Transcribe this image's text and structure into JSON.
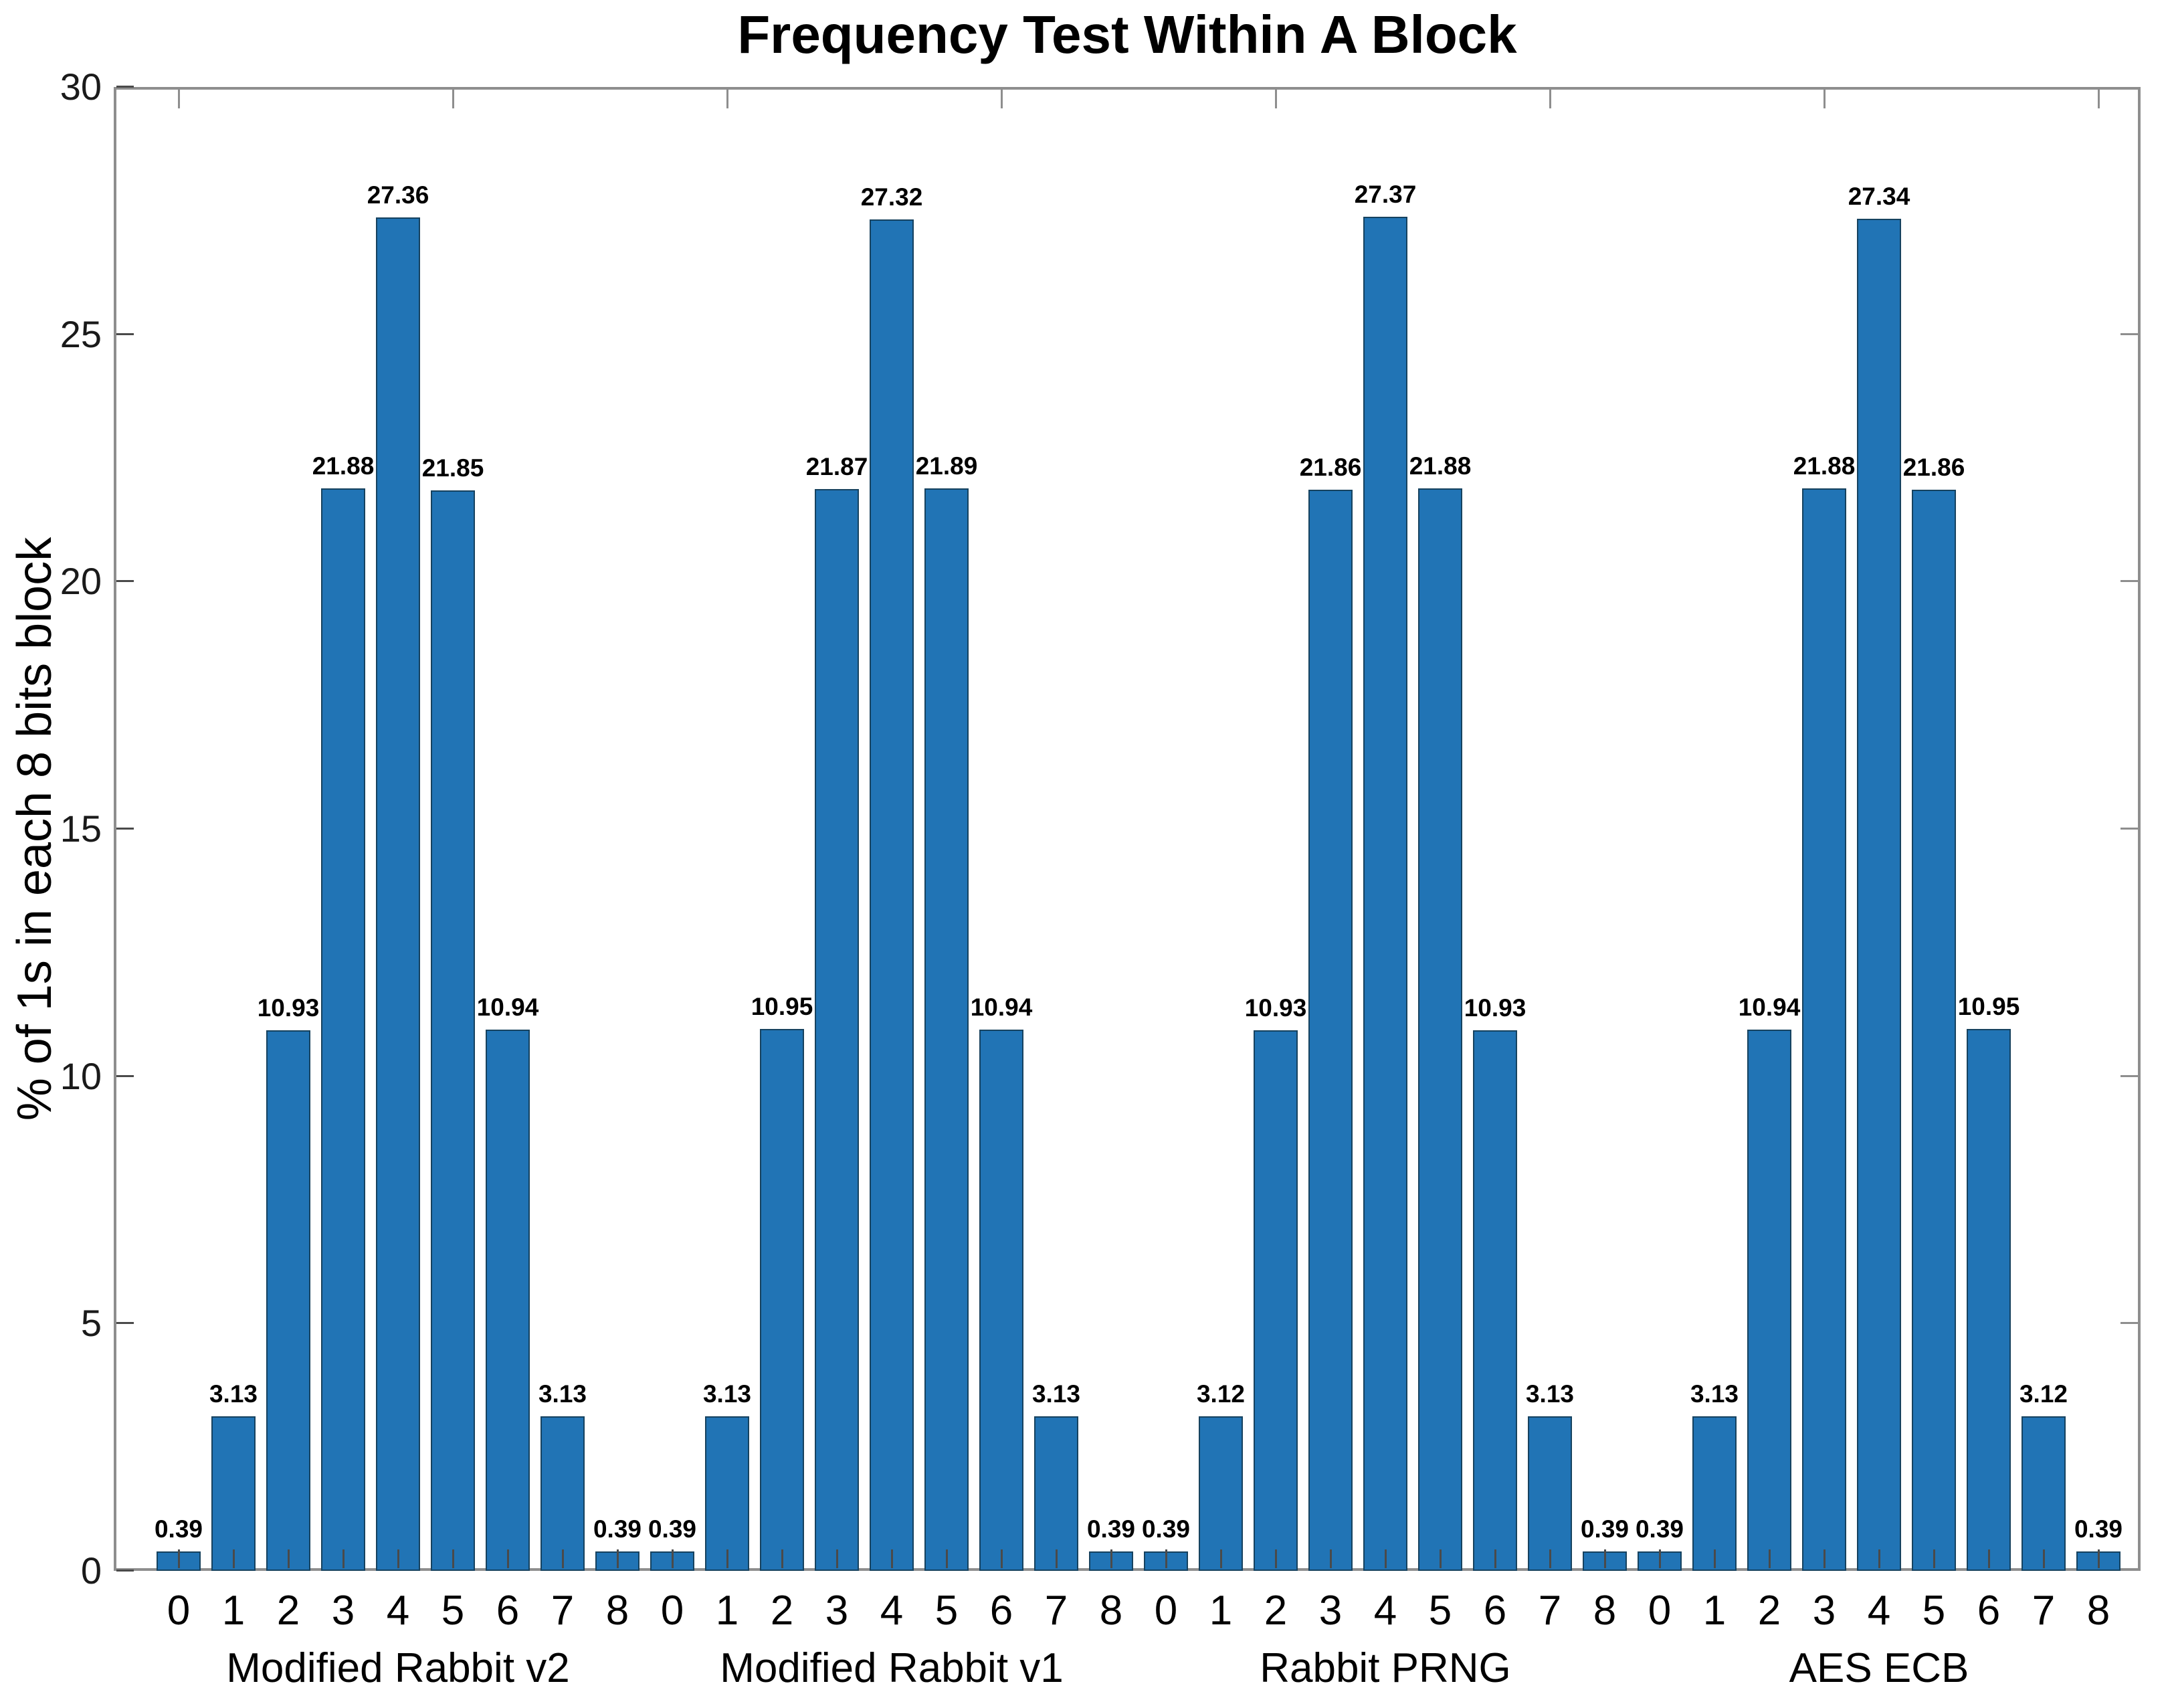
{
  "chart_data": {
    "type": "bar",
    "title": "Frequency Test Within A Block",
    "ylabel": "% of 1s in each 8 bits block",
    "xlabel": "",
    "ylim": [
      0,
      30
    ],
    "yticks": [
      "0",
      "5",
      "10",
      "15",
      "20",
      "25",
      "30"
    ],
    "grid": false,
    "legend_position": "none",
    "value_labels_shown": true,
    "categories": [
      "0",
      "1",
      "2",
      "3",
      "4",
      "5",
      "6",
      "7",
      "8"
    ],
    "series": [
      {
        "name": "Modified Rabbit v2",
        "values": [
          0.39,
          3.13,
          10.93,
          21.88,
          27.36,
          21.85,
          10.94,
          3.13,
          0.39
        ]
      },
      {
        "name": "Modified Rabbit v1",
        "values": [
          0.39,
          3.13,
          10.95,
          21.87,
          27.32,
          21.89,
          10.94,
          3.13,
          0.39
        ]
      },
      {
        "name": "Rabbit PRNG",
        "values": [
          0.39,
          3.12,
          10.93,
          21.86,
          27.37,
          21.88,
          10.93,
          3.13,
          0.39
        ]
      },
      {
        "name": "AES ECB",
        "values": [
          0.39,
          3.13,
          10.94,
          21.88,
          27.34,
          21.86,
          10.95,
          3.12,
          0.39
        ]
      }
    ],
    "colors": {
      "bar_fill": "#2174b5",
      "bar_edge": "#16425f",
      "axis_frame": "#8e8e8e",
      "tick": "#4a4a4a",
      "text": "#000000",
      "background": "#ffffff"
    }
  }
}
